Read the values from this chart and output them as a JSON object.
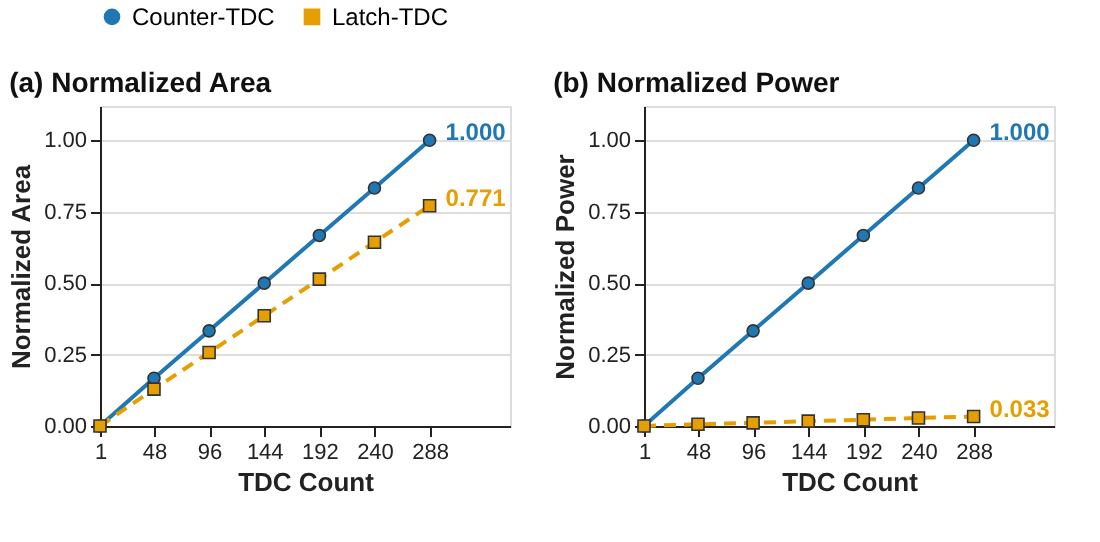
{
  "chart_data": [
    {
      "type": "line",
      "title": "(a) Normalized Area",
      "xlabel": "TDC Count",
      "ylabel": "Normalized Area",
      "x": [
        1,
        48,
        96,
        144,
        192,
        240,
        288
      ],
      "series": [
        {
          "name": "Counter-TDC",
          "color": "#1f77b4",
          "marker": "circle",
          "line_style": "solid",
          "values": [
            0,
            0.167,
            0.333,
            0.5,
            0.667,
            0.833,
            1.0
          ],
          "value_labels": [
            null,
            null,
            null,
            null,
            null,
            null,
            "1.000"
          ]
        },
        {
          "name": "Latch-TDC",
          "color": "#e69f00",
          "marker": "square",
          "line_style": "dashed",
          "values": [
            0,
            0.129,
            0.257,
            0.386,
            0.514,
            0.643,
            0.771
          ],
          "value_labels": [
            null,
            null,
            null,
            null,
            null,
            null,
            "0.771"
          ]
        }
      ],
      "xlim": [
        1,
        358
      ],
      "xticks": [
        1,
        48,
        96,
        144,
        192,
        240,
        288
      ],
      "ylim": [
        0,
        1.12
      ],
      "yticks": [
        {
          "value": 0,
          "label": "0.00"
        },
        {
          "value": 0.25,
          "label": "0.25"
        },
        {
          "value": 0.5,
          "label": "0.50"
        },
        {
          "value": 0.75,
          "label": "0.75"
        },
        {
          "value": 1,
          "label": "1.00"
        }
      ],
      "grid": "y",
      "legend": "top"
    },
    {
      "type": "line",
      "title": "(b) Normalized Power",
      "xlabel": "TDC Count",
      "ylabel": "Normalized Power",
      "x": [
        1,
        48,
        96,
        144,
        192,
        240,
        288
      ],
      "series": [
        {
          "name": "Counter-TDC",
          "color": "#1f77b4",
          "marker": "circle",
          "line_style": "solid",
          "values": [
            0,
            0.167,
            0.333,
            0.5,
            0.667,
            0.833,
            1.0
          ],
          "value_labels": [
            null,
            null,
            null,
            null,
            null,
            null,
            "1.000"
          ]
        },
        {
          "name": "Latch-TDC",
          "color": "#e69f00",
          "marker": "square",
          "line_style": "dashed",
          "values": [
            0,
            0.006,
            0.011,
            0.017,
            0.022,
            0.028,
            0.033
          ],
          "value_labels": [
            null,
            null,
            null,
            null,
            null,
            null,
            "0.033"
          ]
        }
      ],
      "xlim": [
        1,
        358
      ],
      "xticks": [
        1,
        48,
        96,
        144,
        192,
        240,
        288
      ],
      "ylim": [
        0,
        1.12
      ],
      "yticks": [
        {
          "value": 0,
          "label": "0.00"
        },
        {
          "value": 0.25,
          "label": "0.25"
        },
        {
          "value": 0.5,
          "label": "0.50"
        },
        {
          "value": 0.75,
          "label": "0.75"
        },
        {
          "value": 1,
          "label": "1.00"
        }
      ],
      "grid": "y",
      "legend": "top"
    }
  ]
}
